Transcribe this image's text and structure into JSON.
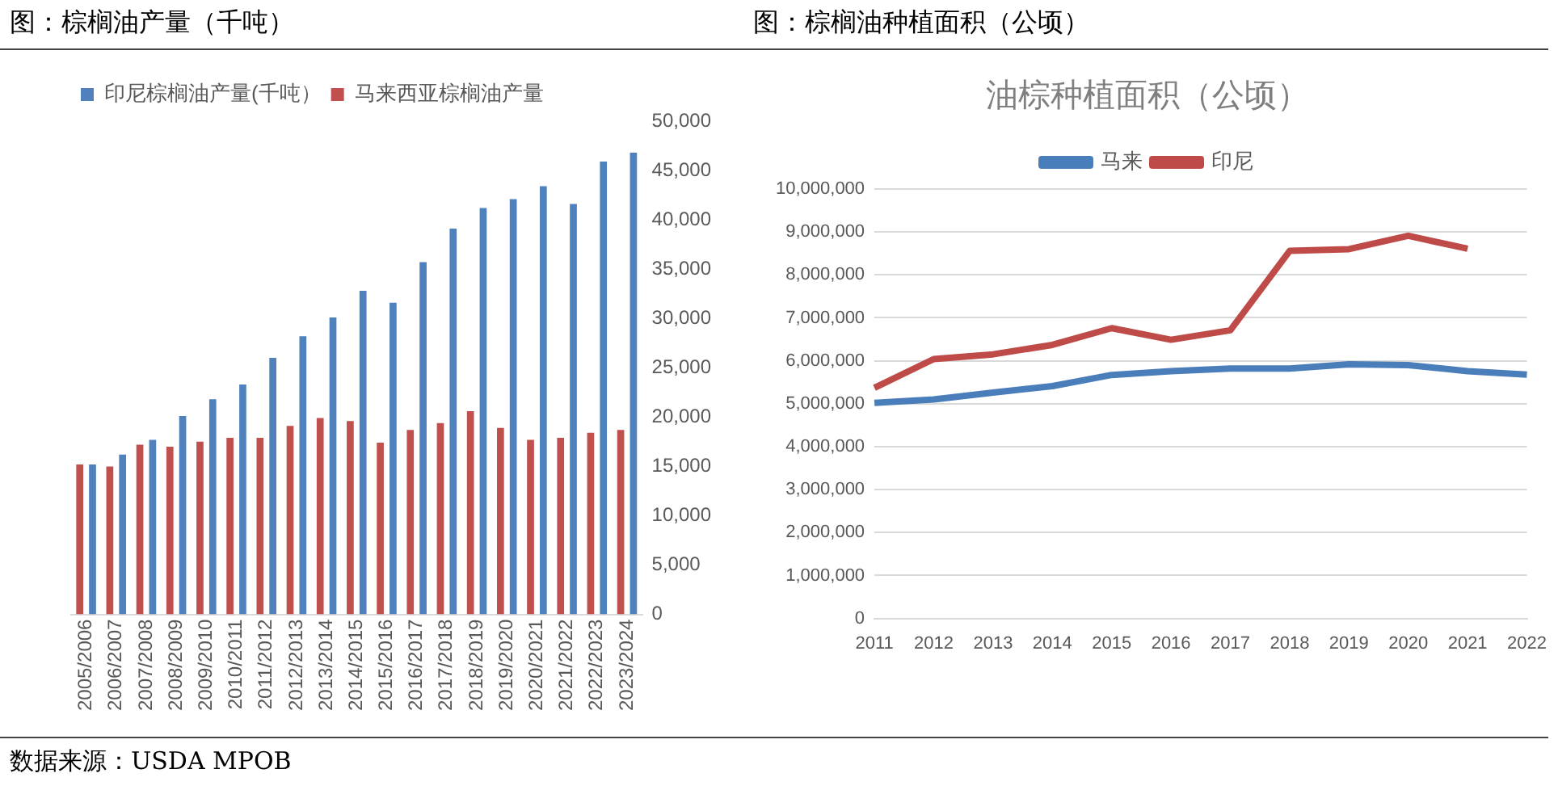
{
  "chart_data": [
    {
      "type": "bar",
      "title": "图：棕榈油产量（千吨）",
      "categories": [
        "2005/2006",
        "2006/2007",
        "2007/2008",
        "2008/2009",
        "2009/2010",
        "2010/2011",
        "2011/2012",
        "2012/2013",
        "2013/2014",
        "2014/2015",
        "2015/2016",
        "2016/2017",
        "2017/2018",
        "2018/2019",
        "2019/2020",
        "2020/2021",
        "2021/2022",
        "2022/2023",
        "2023/2024"
      ],
      "series": [
        {
          "name": "印尼棕榈油产量(千吨）",
          "color": "#4f81bd",
          "values": [
            15200,
            16200,
            17700,
            20100,
            21800,
            23300,
            26000,
            28200,
            30100,
            32800,
            31600,
            35700,
            39100,
            41200,
            42100,
            43400,
            41600,
            45900,
            46800
          ]
        },
        {
          "name": "马来西亚棕榈油产量",
          "color": "#c0504d",
          "values": [
            15200,
            15000,
            17200,
            17000,
            17500,
            17900,
            17900,
            19100,
            19900,
            19600,
            17400,
            18700,
            19400,
            20600,
            18900,
            17700,
            17900,
            18400,
            18700
          ]
        }
      ],
      "ylim": [
        0,
        50000
      ],
      "yticks": [
        0,
        {
          "value": 5000,
          "label": "5,000"
        },
        {
          "value": 10000,
          "label": "10,000"
        },
        {
          "value": 15000,
          "label": "15,000"
        },
        {
          "value": 20000,
          "label": "20,000"
        },
        {
          "value": 25000,
          "label": "25,000"
        },
        {
          "value": 30000,
          "label": "30,000"
        },
        {
          "value": 35000,
          "label": "35,000"
        },
        {
          "value": 40000,
          "label": "40,000"
        },
        {
          "value": 45000,
          "label": "45,000"
        },
        {
          "value": 50000,
          "label": "50,000"
        }
      ],
      "grid": false,
      "legend": "top left",
      "annotations": [
        "数据来源：USDA MPOB"
      ]
    },
    {
      "type": "line",
      "title": "图：棕榈油种植面积（公顷）",
      "subtitle": "油棕种植面积（公顷）",
      "categories": [
        "2011",
        "2012",
        "2013",
        "2014",
        "2015",
        "2016",
        "2017",
        "2018",
        "2019",
        "2020",
        "2021",
        "2022"
      ],
      "series": [
        {
          "name": "马来",
          "color": "#4a7ebb",
          "values": [
            5020000,
            5100000,
            5260000,
            5410000,
            5670000,
            5760000,
            5820000,
            5820000,
            5920000,
            5900000,
            5760000,
            5680000
          ]
        },
        {
          "name": "印尼",
          "color": "#be4b48",
          "values": [
            5370000,
            6040000,
            6150000,
            6370000,
            6760000,
            6490000,
            6710000,
            8560000,
            8600000,
            8910000,
            8610000,
            null
          ]
        }
      ],
      "ylim": [
        0,
        10000000
      ],
      "yticks": [
        0,
        {
          "value": 1000000,
          "label": "1,000,000"
        },
        {
          "value": 2000000,
          "label": "2,000,000"
        },
        {
          "value": 3000000,
          "label": "3,000,000"
        },
        {
          "value": 4000000,
          "label": "4,000,000"
        },
        {
          "value": 5000000,
          "label": "5,000,000"
        },
        {
          "value": 6000000,
          "label": "6,000,000"
        },
        {
          "value": 7000000,
          "label": "7,000,000"
        },
        {
          "value": 8000000,
          "label": "8,000,000"
        },
        {
          "value": 9000000,
          "label": "9,000,000"
        },
        {
          "value": 10000000,
          "label": "10,000,000"
        }
      ],
      "grid": "y",
      "legend": "top",
      "marker": "none"
    }
  ]
}
